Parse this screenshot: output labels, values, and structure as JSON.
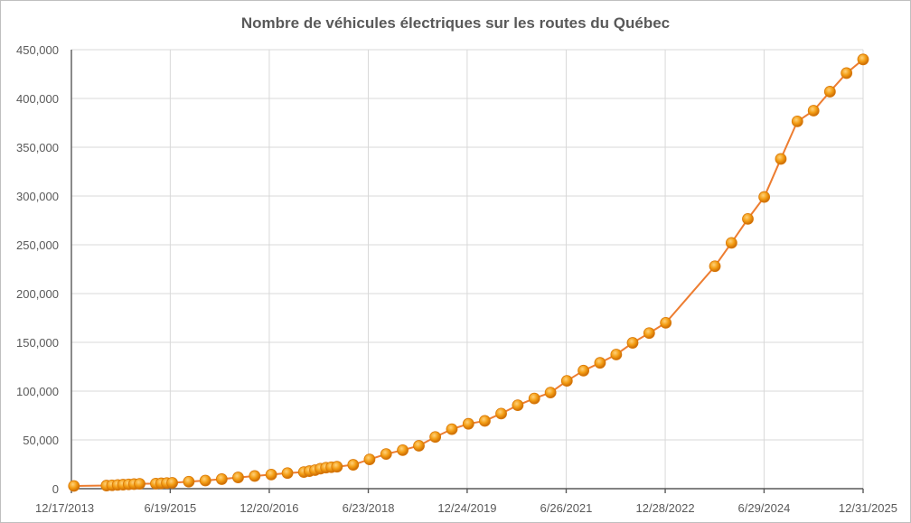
{
  "chart_data": {
    "type": "line",
    "title": "Nombre de véhicules électriques sur les routes du Québec",
    "xlabel": "",
    "ylabel": "",
    "x_axis": {
      "type": "date",
      "min": "2013-12-17",
      "max": "2025-12-31",
      "tick_values": [
        "2013-12-17",
        "2015-06-19",
        "2016-12-20",
        "2018-06-23",
        "2019-12-24",
        "2021-06-26",
        "2022-12-28",
        "2024-06-29",
        "2025-12-31"
      ],
      "tick_labels": [
        "12/17/2013",
        "6/19/2015",
        "12/20/2016",
        "6/23/2018",
        "12/24/2019",
        "6/26/2021",
        "12/28/2022",
        "6/29/2024",
        "12/31/2025"
      ]
    },
    "y_axis": {
      "min": 0,
      "max": 450000,
      "tick_values": [
        0,
        50000,
        100000,
        150000,
        200000,
        250000,
        300000,
        350000,
        400000,
        450000
      ],
      "tick_labels": [
        "0",
        "50,000",
        "100,000",
        "150,000",
        "200,000",
        "250,000",
        "300,000",
        "350,000",
        "400,000",
        "450,000"
      ]
    },
    "grid": true,
    "legend": false,
    "marker_color": "#f39c12",
    "line_color": "#ed7d31",
    "series": [
      {
        "x": [
          "2013-12-31",
          "2014-06-30",
          "2014-07-31",
          "2014-08-31",
          "2014-09-30",
          "2014-10-31",
          "2014-11-30",
          "2014-12-31",
          "2015-03-31",
          "2015-04-30",
          "2015-05-31",
          "2015-06-30",
          "2015-09-30",
          "2015-12-31",
          "2016-03-31",
          "2016-06-30",
          "2016-09-30",
          "2016-12-31",
          "2017-03-31",
          "2017-06-30",
          "2017-07-31",
          "2017-08-31",
          "2017-09-30",
          "2017-10-31",
          "2017-11-30",
          "2017-12-31",
          "2018-03-31",
          "2018-06-30",
          "2018-09-30",
          "2018-12-31",
          "2019-03-31",
          "2019-06-30",
          "2019-09-30",
          "2019-12-31",
          "2020-03-31",
          "2020-06-30",
          "2020-09-30",
          "2020-12-31",
          "2021-03-31",
          "2021-06-30",
          "2021-09-30",
          "2021-12-31",
          "2022-03-31",
          "2022-06-30",
          "2022-09-30",
          "2022-12-31",
          "2023-09-30",
          "2023-12-31",
          "2024-03-31",
          "2024-06-30",
          "2024-09-30",
          "2024-12-31",
          "2025-03-31",
          "2025-06-30",
          "2025-09-30",
          "2025-12-31"
        ],
        "values": [
          2800,
          3200,
          3500,
          3800,
          4100,
          4400,
          4700,
          5000,
          5200,
          5500,
          5800,
          6000,
          7200,
          8300,
          9800,
          11500,
          13000,
          14500,
          16000,
          17000,
          18000,
          19000,
          20500,
          21500,
          22000,
          22500,
          24500,
          30000,
          35500,
          39500,
          44000,
          53000,
          61000,
          66500,
          69500,
          77000,
          85500,
          92500,
          98500,
          110500,
          121000,
          129000,
          137500,
          149500,
          159500,
          170000,
          228000,
          252000,
          276500,
          299000,
          338000,
          376500,
          387500,
          407000,
          426000,
          440000
        ]
      }
    ]
  }
}
